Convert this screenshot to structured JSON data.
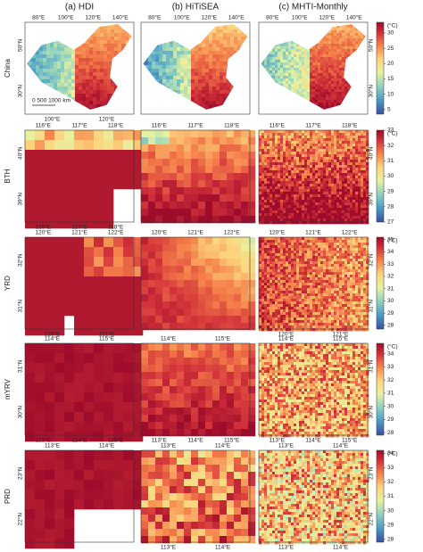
{
  "column_titles": [
    "(a) HDI",
    "(b) HiTiSEA",
    "(c) MHTI-Monthly"
  ],
  "scale_bar": "0  500  1000 km",
  "rows": [
    {
      "label": "China",
      "top_lon": [
        "80°E",
        "100°E",
        "120°E",
        "140°E"
      ],
      "bottom_lon": [
        "100°E",
        "120°E"
      ],
      "lat": [
        "50°N",
        "30°N"
      ],
      "colorbar": {
        "unit": "(°C)",
        "range": [
          3.5,
          33.5
        ],
        "ticks": [
          5,
          10,
          15,
          20,
          25,
          30
        ]
      }
    },
    {
      "label": "BTH",
      "top_lon": [
        "116°E",
        "117°E",
        "118°E"
      ],
      "bottom_lon": [
        "116°E",
        "117°E",
        "118°E"
      ],
      "lat": [
        "40°N",
        "39°N"
      ],
      "colorbar": {
        "unit": "(°C)",
        "range": [
          27,
          33
        ],
        "ticks": [
          27,
          28,
          29,
          30,
          31,
          32,
          33
        ]
      }
    },
    {
      "label": "YRD",
      "top_lon": [
        "120°E",
        "121°E",
        "122°E"
      ],
      "bottom_lon": [
        "120°E",
        "121°E"
      ],
      "lat": [
        "32°N",
        "31°N"
      ],
      "colorbar": {
        "unit": "(°C)",
        "range": [
          27.7,
          35.2
        ],
        "ticks": [
          28,
          29,
          30,
          31,
          32,
          33,
          34,
          35
        ]
      }
    },
    {
      "label": "mYRV",
      "top_lon": [
        "114°E",
        "115°E"
      ],
      "bottom_lon": [
        "113°E",
        "114°E",
        "115°E"
      ],
      "lat": [
        "31°N",
        "30°N"
      ],
      "colorbar": {
        "unit": "(°C)",
        "range": [
          27.8,
          34.8
        ],
        "ticks": [
          28,
          29,
          30,
          31,
          32,
          33,
          34
        ]
      }
    },
    {
      "label": "PRD",
      "top_lon": [
        "113°E",
        "114°E"
      ],
      "bottom_lon": [
        "113°E",
        "114°E"
      ],
      "lat": [
        "23°N",
        "22°N"
      ],
      "colorbar": {
        "unit": "(°C)",
        "range": [
          27.8,
          34.2
        ],
        "ticks": [
          28,
          29,
          30,
          31,
          32,
          33,
          34
        ]
      }
    }
  ]
}
